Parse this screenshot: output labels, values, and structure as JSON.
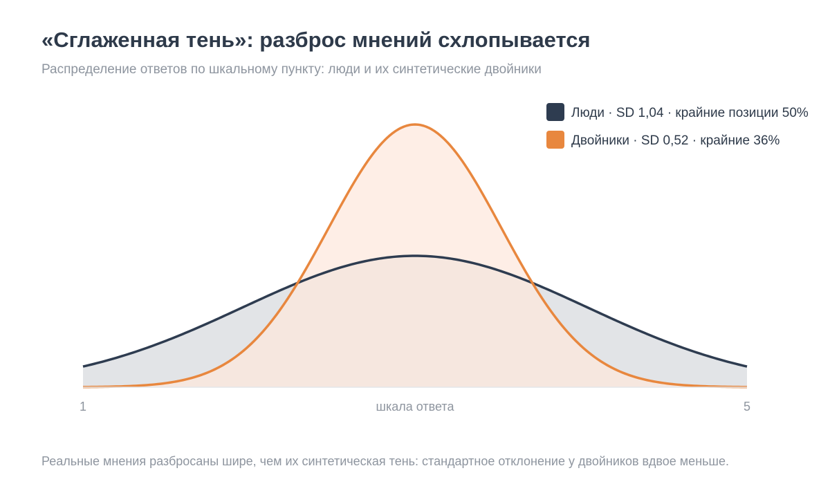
{
  "title": "«Сглаженная тень»: разброс мнений схлопывается",
  "subtitle": "Распределение ответов по шкальному пункту: люди и их синтетические двойники",
  "footnote": "Реальные мнения разбросаны шире, чем их синтетическая тень: стандартное отклонение у двойников вдвое меньше.",
  "chart_data": {
    "type": "area",
    "xlabel": "шкала ответа",
    "ylabel": "",
    "xlim": [
      1,
      5
    ],
    "x_ticks": [
      "1",
      "5"
    ],
    "grid": false,
    "legend_position": "top-right",
    "series": [
      {
        "name": "Люди · SD 1,04 · крайние позиции 50%",
        "distribution": "normal",
        "mean": 3,
        "sd": 1.04,
        "color": "#2e3c50",
        "fill": "#e2e4e7"
      },
      {
        "name": "Двойники · SD 0,52 · крайние 36%",
        "distribution": "normal",
        "mean": 3,
        "sd": 0.52,
        "color": "#e8873e",
        "fill": "#fde8dc"
      }
    ]
  }
}
